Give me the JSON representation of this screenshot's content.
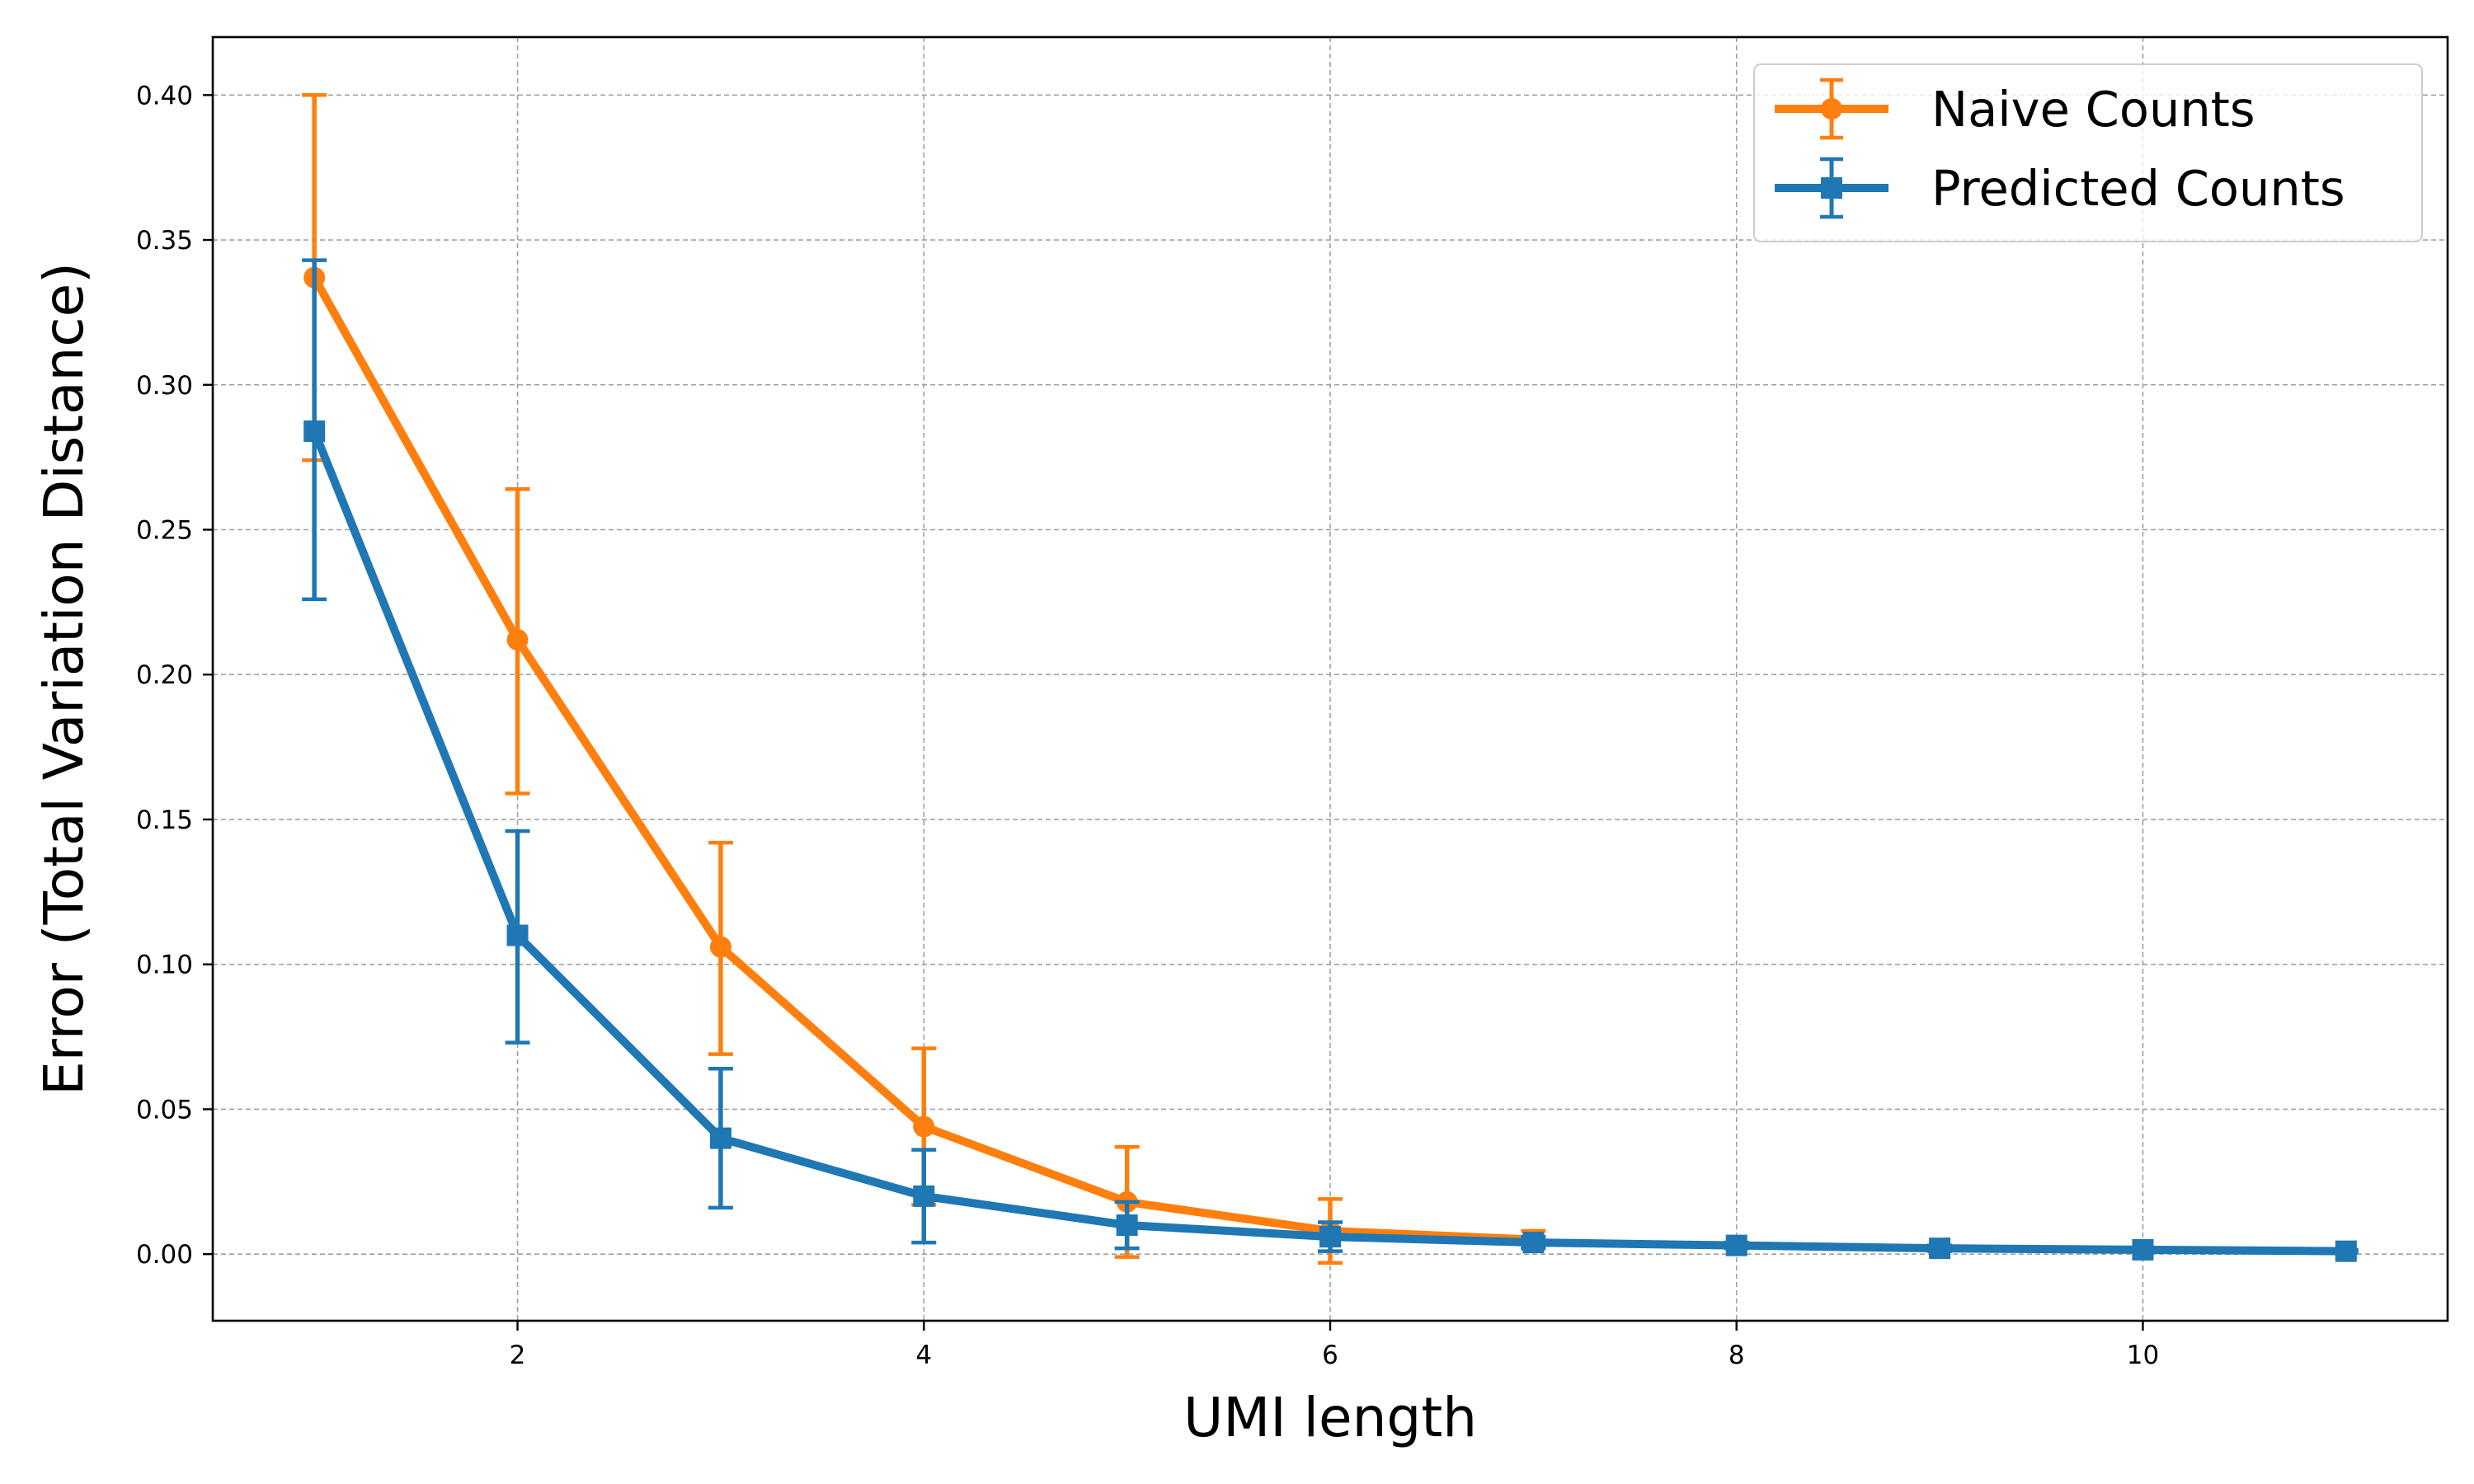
{
  "chart_data": {
    "type": "line",
    "title": "",
    "xlabel": "UMI length",
    "ylabel": "Error (Total Variation Distance)",
    "xlim": [
      0.5,
      11.5
    ],
    "ylim": [
      -0.023,
      0.42
    ],
    "x_ticks": [
      2,
      4,
      6,
      8,
      10
    ],
    "x_tick_labels": [
      "2",
      "4",
      "6",
      "8",
      "10"
    ],
    "y_ticks": [
      0.0,
      0.05,
      0.1,
      0.15,
      0.2,
      0.25,
      0.3,
      0.35,
      0.4
    ],
    "y_tick_labels": [
      "0.00",
      "0.05",
      "0.10",
      "0.15",
      "0.20",
      "0.25",
      "0.30",
      "0.35",
      "0.40"
    ],
    "grid": true,
    "legend_position": "top-right",
    "series": [
      {
        "name": "Naive Counts",
        "color": "#ff7f0e",
        "marker": "circle",
        "x": [
          1,
          2,
          3,
          4,
          5,
          6,
          7
        ],
        "y": [
          0.337,
          0.212,
          0.106,
          0.044,
          0.018,
          0.008,
          0.005
        ],
        "yerr_low": [
          0.274,
          0.159,
          0.069,
          0.017,
          -0.001,
          -0.003,
          0.002
        ],
        "yerr_high": [
          0.4,
          0.264,
          0.142,
          0.071,
          0.037,
          0.019,
          0.008
        ]
      },
      {
        "name": "Predicted Counts",
        "color": "#1f77b4",
        "marker": "square",
        "x": [
          1,
          2,
          3,
          4,
          5,
          6,
          7,
          8,
          9,
          10,
          11
        ],
        "y": [
          0.284,
          0.11,
          0.04,
          0.02,
          0.01,
          0.006,
          0.004,
          0.003,
          0.002,
          0.0015,
          0.001
        ],
        "yerr_low": [
          0.226,
          0.073,
          0.016,
          0.004,
          0.002,
          0.001,
          0.002,
          0.002,
          0.001,
          0.001,
          0.0005
        ],
        "yerr_high": [
          0.343,
          0.146,
          0.064,
          0.036,
          0.018,
          0.011,
          0.006,
          0.004,
          0.003,
          0.002,
          0.0015
        ]
      }
    ]
  }
}
